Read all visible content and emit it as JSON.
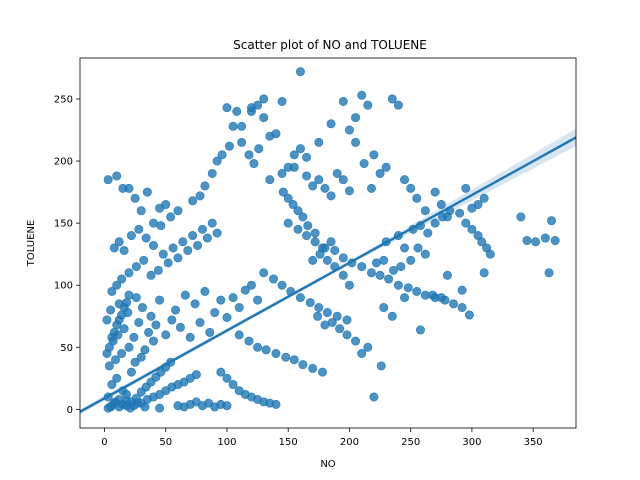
{
  "chart_data": {
    "type": "scatter",
    "title": "Scatter plot of NO and TOLUENE",
    "xlabel": "NO",
    "ylabel": "TOLUENE",
    "xlim": [
      -20,
      385
    ],
    "ylim": [
      -15,
      283
    ],
    "xticks": [
      0,
      50,
      100,
      150,
      200,
      250,
      300,
      350
    ],
    "yticks": [
      0,
      50,
      100,
      150,
      200,
      250
    ],
    "grid": false,
    "legend": "none",
    "point_color": "#1f77b4",
    "points": [
      [
        5,
        2
      ],
      [
        8,
        5
      ],
      [
        3,
        10
      ],
      [
        12,
        8
      ],
      [
        15,
        15
      ],
      [
        6,
        20
      ],
      [
        10,
        25
      ],
      [
        18,
        12
      ],
      [
        22,
        30
      ],
      [
        4,
        35
      ],
      [
        9,
        40
      ],
      [
        14,
        45
      ],
      [
        20,
        50
      ],
      [
        25,
        38
      ],
      [
        30,
        42
      ],
      [
        7,
        55
      ],
      [
        11,
        60
      ],
      [
        16,
        65
      ],
      [
        24,
        58
      ],
      [
        28,
        70
      ],
      [
        33,
        48
      ],
      [
        36,
        62
      ],
      [
        40,
        55
      ],
      [
        2,
        72
      ],
      [
        5,
        80
      ],
      [
        12,
        85
      ],
      [
        19,
        78
      ],
      [
        26,
        90
      ],
      [
        31,
        82
      ],
      [
        38,
        75
      ],
      [
        42,
        68
      ],
      [
        45,
        88
      ],
      [
        50,
        60
      ],
      [
        55,
        72
      ],
      [
        58,
        80
      ],
      [
        62,
        66
      ],
      [
        66,
        92
      ],
      [
        70,
        58
      ],
      [
        74,
        85
      ],
      [
        78,
        70
      ],
      [
        82,
        95
      ],
      [
        86,
        62
      ],
      [
        90,
        78
      ],
      [
        95,
        88
      ],
      [
        100,
        74
      ],
      [
        105,
        90
      ],
      [
        110,
        82
      ],
      [
        115,
        96
      ],
      [
        120,
        100
      ],
      [
        125,
        88
      ],
      [
        6,
        95
      ],
      [
        10,
        100
      ],
      [
        14,
        105
      ],
      [
        20,
        110
      ],
      [
        26,
        115
      ],
      [
        32,
        120
      ],
      [
        38,
        108
      ],
      [
        44,
        112
      ],
      [
        48,
        125
      ],
      [
        52,
        118
      ],
      [
        56,
        130
      ],
      [
        60,
        122
      ],
      [
        64,
        135
      ],
      [
        68,
        128
      ],
      [
        72,
        140
      ],
      [
        76,
        132
      ],
      [
        80,
        145
      ],
      [
        84,
        138
      ],
      [
        88,
        150
      ],
      [
        92,
        142
      ],
      [
        3,
        185
      ],
      [
        10,
        188
      ],
      [
        15,
        178
      ],
      [
        20,
        178
      ],
      [
        25,
        170
      ],
      [
        30,
        160
      ],
      [
        35,
        175
      ],
      [
        40,
        150
      ],
      [
        45,
        162
      ],
      [
        50,
        165
      ],
      [
        8,
        130
      ],
      [
        12,
        135
      ],
      [
        16,
        128
      ],
      [
        22,
        140
      ],
      [
        28,
        145
      ],
      [
        34,
        138
      ],
      [
        40,
        132
      ],
      [
        46,
        148
      ],
      [
        54,
        155
      ],
      [
        60,
        160
      ],
      [
        96,
        205
      ],
      [
        100,
        243
      ],
      [
        105,
        228
      ],
      [
        108,
        240
      ],
      [
        112,
        215
      ],
      [
        118,
        205
      ],
      [
        122,
        198
      ],
      [
        126,
        210
      ],
      [
        130,
        235
      ],
      [
        135,
        220
      ],
      [
        140,
        222
      ],
      [
        145,
        248
      ],
      [
        150,
        195
      ],
      [
        155,
        205
      ],
      [
        160,
        210
      ],
      [
        165,
        188
      ],
      [
        170,
        180
      ],
      [
        175,
        185
      ],
      [
        180,
        178
      ],
      [
        185,
        172
      ],
      [
        190,
        190
      ],
      [
        195,
        185
      ],
      [
        200,
        176
      ],
      [
        205,
        215
      ],
      [
        210,
        253
      ],
      [
        212,
        198
      ],
      [
        215,
        245
      ],
      [
        218,
        178
      ],
      [
        220,
        205
      ],
      [
        225,
        190
      ],
      [
        230,
        195
      ],
      [
        235,
        250
      ],
      [
        240,
        245
      ],
      [
        245,
        185
      ],
      [
        250,
        178
      ],
      [
        255,
        170
      ],
      [
        262,
        160
      ],
      [
        270,
        175
      ],
      [
        275,
        165
      ],
      [
        280,
        155
      ],
      [
        160,
        272
      ],
      [
        200,
        225
      ],
      [
        205,
        235
      ],
      [
        195,
        248
      ],
      [
        185,
        230
      ],
      [
        175,
        215
      ],
      [
        165,
        203
      ],
      [
        155,
        195
      ],
      [
        145,
        190
      ],
      [
        135,
        185
      ],
      [
        125,
        245
      ],
      [
        130,
        250
      ],
      [
        120,
        243
      ],
      [
        112,
        228
      ],
      [
        102,
        212
      ],
      [
        92,
        200
      ],
      [
        88,
        190
      ],
      [
        82,
        180
      ],
      [
        78,
        172
      ],
      [
        72,
        168
      ],
      [
        150,
        150
      ],
      [
        158,
        145
      ],
      [
        165,
        140
      ],
      [
        172,
        135
      ],
      [
        180,
        130
      ],
      [
        188,
        128
      ],
      [
        195,
        122
      ],
      [
        202,
        118
      ],
      [
        210,
        115
      ],
      [
        218,
        110
      ],
      [
        225,
        108
      ],
      [
        232,
        105
      ],
      [
        240,
        100
      ],
      [
        248,
        98
      ],
      [
        255,
        95
      ],
      [
        262,
        92
      ],
      [
        270,
        90
      ],
      [
        278,
        88
      ],
      [
        285,
        85
      ],
      [
        292,
        82
      ],
      [
        130,
        110
      ],
      [
        138,
        105
      ],
      [
        145,
        100
      ],
      [
        152,
        95
      ],
      [
        160,
        90
      ],
      [
        168,
        86
      ],
      [
        175,
        82
      ],
      [
        182,
        78
      ],
      [
        190,
        75
      ],
      [
        198,
        72
      ],
      [
        110,
        60
      ],
      [
        118,
        55
      ],
      [
        125,
        50
      ],
      [
        132,
        48
      ],
      [
        140,
        45
      ],
      [
        148,
        42
      ],
      [
        155,
        40
      ],
      [
        162,
        36
      ],
      [
        170,
        33
      ],
      [
        178,
        30
      ],
      [
        95,
        30
      ],
      [
        100,
        25
      ],
      [
        105,
        20
      ],
      [
        110,
        15
      ],
      [
        115,
        12
      ],
      [
        120,
        10
      ],
      [
        125,
        8
      ],
      [
        130,
        6
      ],
      [
        135,
        5
      ],
      [
        140,
        4
      ],
      [
        60,
        3
      ],
      [
        65,
        2
      ],
      [
        70,
        4
      ],
      [
        75,
        6
      ],
      [
        80,
        3
      ],
      [
        85,
        5
      ],
      [
        90,
        2
      ],
      [
        95,
        4
      ],
      [
        100,
        3
      ],
      [
        45,
        1
      ],
      [
        230,
        135
      ],
      [
        240,
        140
      ],
      [
        245,
        130
      ],
      [
        252,
        145
      ],
      [
        258,
        148
      ],
      [
        264,
        142
      ],
      [
        270,
        150
      ],
      [
        276,
        155
      ],
      [
        282,
        160
      ],
      [
        290,
        158
      ],
      [
        295,
        150
      ],
      [
        300,
        145
      ],
      [
        305,
        140
      ],
      [
        308,
        135
      ],
      [
        312,
        130
      ],
      [
        315,
        125
      ],
      [
        305,
        165
      ],
      [
        310,
        170
      ],
      [
        300,
        162
      ],
      [
        295,
        178
      ],
      [
        340,
        155
      ],
      [
        345,
        136
      ],
      [
        352,
        135
      ],
      [
        360,
        138
      ],
      [
        365,
        152
      ],
      [
        368,
        136
      ],
      [
        363,
        110
      ],
      [
        310,
        110
      ],
      [
        298,
        76
      ],
      [
        292,
        96
      ],
      [
        280,
        108
      ],
      [
        275,
        90
      ],
      [
        268,
        92
      ],
      [
        262,
        125
      ],
      [
        256,
        130
      ],
      [
        250,
        120
      ],
      [
        242,
        115
      ],
      [
        236,
        112
      ],
      [
        228,
        120
      ],
      [
        222,
        118
      ],
      [
        226,
        35
      ],
      [
        220,
        10
      ],
      [
        215,
        50
      ],
      [
        210,
        45
      ],
      [
        205,
        55
      ],
      [
        198,
        60
      ],
      [
        192,
        65
      ],
      [
        186,
        70
      ],
      [
        180,
        68
      ],
      [
        174,
        75
      ],
      [
        120,
        240
      ],
      [
        185,
        135
      ],
      [
        178,
        130
      ],
      [
        172,
        142
      ],
      [
        166,
        148
      ],
      [
        162,
        155
      ],
      [
        158,
        160
      ],
      [
        154,
        165
      ],
      [
        150,
        170
      ],
      [
        146,
        175
      ],
      [
        30,
        5
      ],
      [
        35,
        8
      ],
      [
        40,
        10
      ],
      [
        45,
        12
      ],
      [
        50,
        15
      ],
      [
        55,
        18
      ],
      [
        60,
        20
      ],
      [
        65,
        22
      ],
      [
        70,
        25
      ],
      [
        75,
        28
      ],
      [
        18,
        3
      ],
      [
        22,
        6
      ],
      [
        26,
        9
      ],
      [
        30,
        14
      ],
      [
        34,
        18
      ],
      [
        38,
        22
      ],
      [
        42,
        26
      ],
      [
        46,
        30
      ],
      [
        50,
        34
      ],
      [
        54,
        38
      ],
      [
        2,
        45
      ],
      [
        4,
        50
      ],
      [
        6,
        58
      ],
      [
        8,
        62
      ],
      [
        10,
        68
      ],
      [
        12,
        72
      ],
      [
        14,
        76
      ],
      [
        16,
        82
      ],
      [
        18,
        86
      ],
      [
        20,
        92
      ],
      [
        3,
        1
      ],
      [
        6,
        3
      ],
      [
        9,
        6
      ],
      [
        12,
        2
      ],
      [
        15,
        4
      ],
      [
        18,
        7
      ],
      [
        21,
        1
      ],
      [
        24,
        3
      ],
      [
        27,
        5
      ],
      [
        33,
        2
      ],
      [
        258,
        64
      ],
      [
        245,
        90
      ],
      [
        235,
        75
      ],
      [
        228,
        82
      ],
      [
        200,
        100
      ],
      [
        195,
        108
      ],
      [
        188,
        115
      ],
      [
        182,
        120
      ],
      [
        176,
        125
      ],
      [
        170,
        120
      ]
    ],
    "regression": {
      "x": [
        -20,
        385
      ],
      "y": [
        -2,
        219
      ],
      "ci_upper_end": 226,
      "ci_lower_end": 212
    }
  }
}
